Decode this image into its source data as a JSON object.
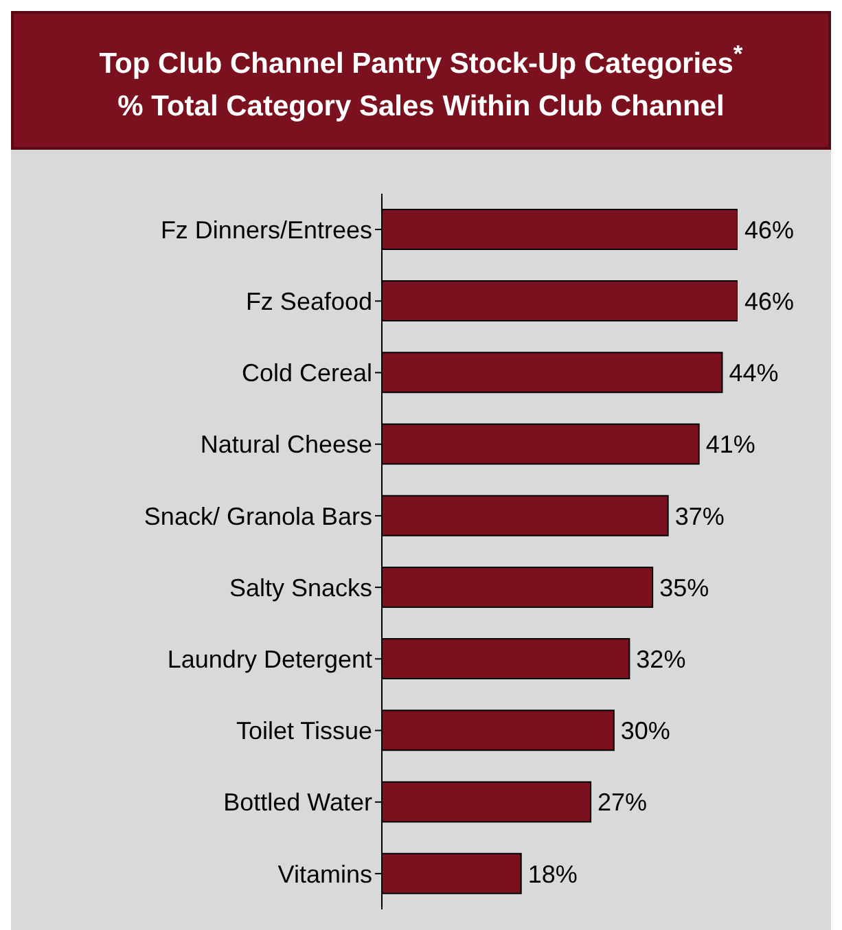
{
  "chart_data": {
    "type": "bar",
    "orientation": "horizontal",
    "title": "Top Club Channel Pantry Stock-Up Categories$^{*}$",
    "subtitle": "% Total Category Sales Within Club Channel",
    "categories": [
      "Fz Dinners/Entrees",
      "Fz Seafood",
      "Cold Cereal",
      "Natural Cheese",
      "Snack/ Granola Bars",
      "Salty Snacks",
      "Laundry Detergent",
      "Toilet Tissue",
      "Bottled Water",
      "Vitamins"
    ],
    "values": [
      46,
      46,
      44,
      41,
      37,
      35,
      32,
      30,
      27,
      18
    ],
    "value_labels": [
      "46%",
      "46%",
      "44%",
      "41%",
      "37%",
      "35%",
      "32%",
      "30%",
      "27%",
      "18%"
    ],
    "color": "#7b111e"
  }
}
